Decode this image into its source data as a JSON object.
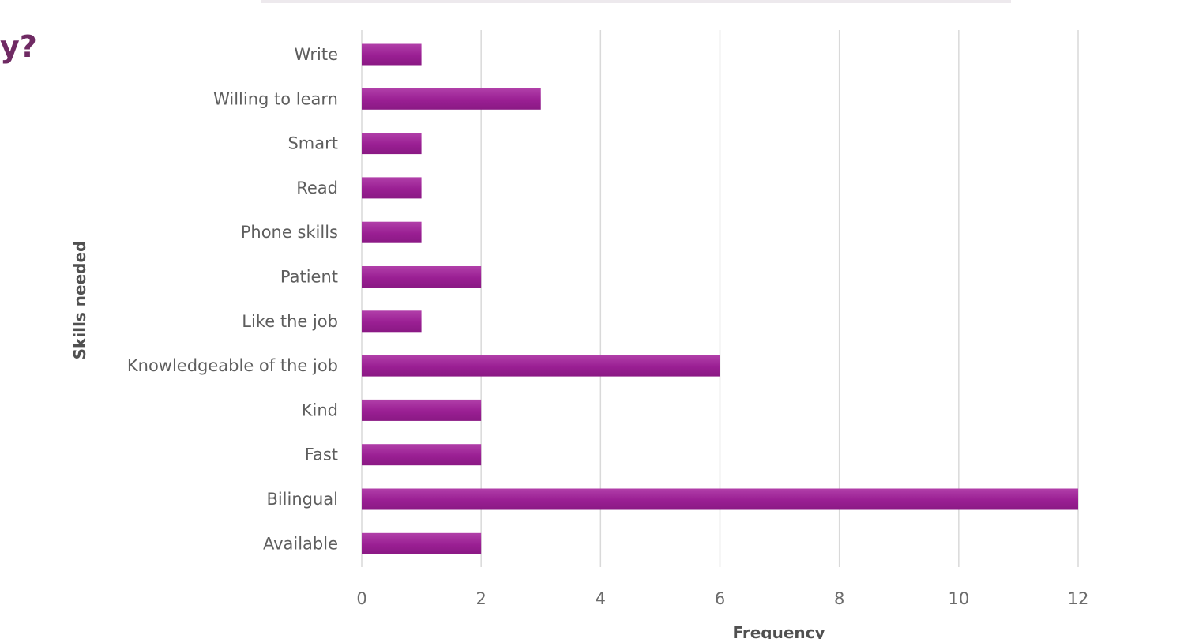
{
  "page": {
    "title_fragment": "y?"
  },
  "chart_data": {
    "type": "bar",
    "orientation": "horizontal",
    "title": "",
    "xlabel": "Frequency",
    "ylabel": "Skills needed",
    "xlim": [
      0,
      12
    ],
    "x_ticks": [
      0,
      2,
      4,
      6,
      8,
      10,
      12
    ],
    "grid": true,
    "legend": "none",
    "bar_color": "#9a1f93",
    "categories": [
      "Write",
      "Willing to learn",
      "Smart",
      "Read",
      "Phone skills",
      "Patient",
      "Like the job",
      "Knowledgeable of the job",
      "Kind",
      "Fast",
      "Bilingual",
      "Available"
    ],
    "values": [
      1,
      3,
      1,
      1,
      1,
      2,
      1,
      6,
      2,
      2,
      12,
      2
    ]
  },
  "colors": {
    "title": "#6f2a63",
    "bar": "#9a1f93",
    "bar_highlight": "#b13fa9",
    "grid": "#d9d9d9",
    "tick_text": "#6b6b6b"
  }
}
